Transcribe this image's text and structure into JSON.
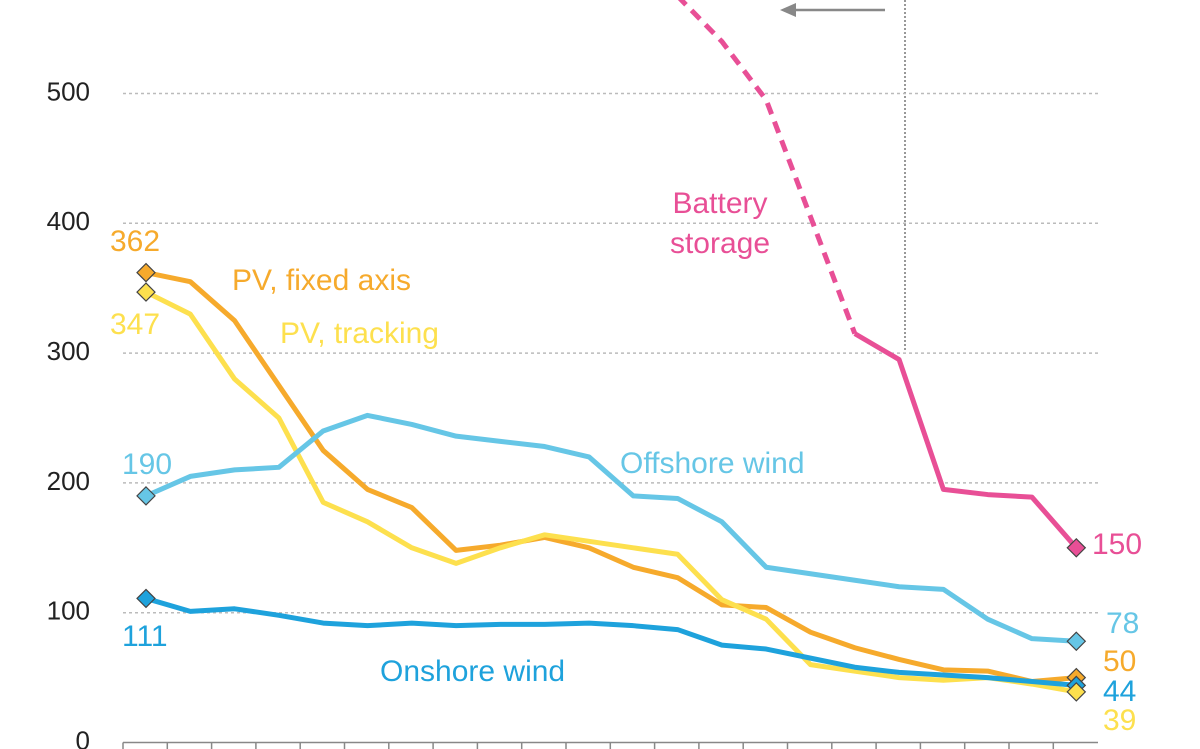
{
  "chart_data": {
    "type": "line",
    "categories": [
      null,
      null,
      null,
      null,
      null,
      null,
      null,
      null,
      null,
      null,
      null,
      null,
      null,
      null,
      null,
      null,
      null,
      null,
      null,
      null,
      null,
      null
    ],
    "ylim": [
      -5,
      572
    ],
    "yticks": [
      0,
      100,
      200,
      300,
      400,
      500
    ],
    "grid": true,
    "series": [
      {
        "name": "PV, fixed axis",
        "color": "#f6aa2c",
        "values": [
          362,
          355,
          325,
          275,
          225,
          195,
          181,
          148,
          152,
          158,
          150,
          135,
          127,
          106,
          104,
          85,
          73,
          64,
          56,
          55,
          47,
          50
        ]
      },
      {
        "name": "PV, tracking",
        "color": "#fde04e",
        "values": [
          347,
          330,
          280,
          250,
          185,
          170,
          150,
          138,
          150,
          160,
          155,
          150,
          145,
          110,
          95,
          60,
          55,
          50,
          48,
          50,
          45,
          39
        ]
      },
      {
        "name": "Offshore wind",
        "color": "#66c6e6",
        "values": [
          190,
          205,
          210,
          212,
          240,
          252,
          245,
          236,
          232,
          228,
          220,
          190,
          188,
          170,
          135,
          130,
          125,
          120,
          118,
          95,
          80,
          78
        ]
      },
      {
        "name": "Onshore wind",
        "color": "#1ea2dc",
        "values": [
          111,
          101,
          103,
          98,
          92,
          90,
          92,
          90,
          91,
          91,
          92,
          90,
          87,
          75,
          72,
          65,
          58,
          54,
          52,
          50,
          47,
          44
        ]
      },
      {
        "name": "Battery storage",
        "color": "#e84f96",
        "dashed_until_index": 16,
        "values": [
          null,
          null,
          null,
          null,
          null,
          null,
          null,
          null,
          null,
          null,
          null,
          null,
          575,
          540,
          495,
          405,
          315,
          295,
          195,
          191,
          189,
          150
        ]
      }
    ]
  }
}
